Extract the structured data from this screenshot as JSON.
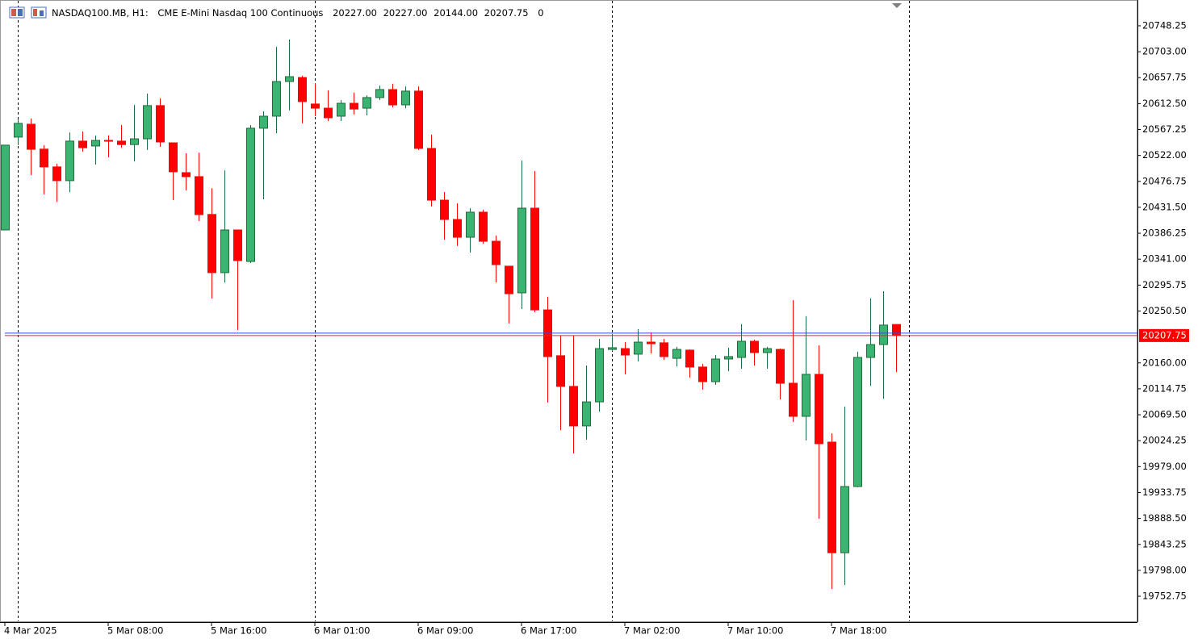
{
  "chart_data": {
    "type": "candlestick",
    "symbol": "NASDAQ100.MB, H1:",
    "description": "CME E-Mini Nasdaq 100 Continuous",
    "ohlc_header": [
      "20227.00",
      "20227.00",
      "20144.00",
      "20207.75",
      "0"
    ],
    "categories": [
      "4 Mar 2025",
      null,
      null,
      null,
      null,
      null,
      null,
      null,
      "5 Mar 08:00",
      null,
      null,
      null,
      null,
      null,
      null,
      null,
      "5 Mar 16:00",
      null,
      null,
      null,
      null,
      null,
      null,
      null,
      "6 Mar 01:00",
      null,
      null,
      null,
      null,
      null,
      null,
      null,
      "6 Mar 09:00",
      null,
      null,
      null,
      null,
      null,
      null,
      null,
      "6 Mar 17:00",
      null,
      null,
      null,
      null,
      null,
      null,
      null,
      "7 Mar 02:00",
      null,
      null,
      null,
      null,
      null,
      null,
      null,
      "7 Mar 10:00",
      null,
      null,
      null,
      null,
      null,
      null,
      null,
      "7 Mar 18:00",
      null,
      null,
      null,
      null,
      null
    ],
    "open": [
      20392,
      20554,
      20576.5,
      20533,
      20502,
      20478,
      20547,
      20538.5,
      20548.25,
      20547,
      20541,
      20551,
      20609,
      20544,
      20492,
      20485,
      20419,
      20317.5,
      20392,
      20337,
      20569.5,
      20590.5,
      20651,
      20658,
      20611.75,
      20604.5,
      20590.5,
      20613,
      20604.5,
      20623,
      20637,
      20610.25,
      20634.25,
      20534.25,
      20444,
      20410.25,
      20379.25,
      20423,
      20372.25,
      20328.75,
      20282.25,
      20430,
      20252.5,
      20172.5,
      20119,
      20050,
      20092,
      20183.5,
      20185,
      20175.25,
      20196.25,
      20195,
      20168,
      20182.25,
      20152.75,
      20127.25,
      20166.75,
      20169.5,
      20197.75,
      20178,
      20183.5,
      20124.5,
      20066.75,
      20140,
      20021.75,
      19828.75,
      19944.25,
      20169.5,
      20192,
      20227
    ],
    "high": [
      20540,
      20585,
      20586.25,
      20540,
      20507.5,
      20562,
      20563.75,
      20556.75,
      20557,
      20575,
      20610,
      20630,
      20621.5,
      20544,
      20525.75,
      20527,
      20465,
      20496,
      20392,
      20575,
      20599,
      20711.5,
      20724.25,
      20661,
      20648.25,
      20635.5,
      20618.75,
      20631.5,
      20627,
      20644,
      20647,
      20642.5,
      20642.5,
      20558.25,
      20458.25,
      20438.5,
      20430,
      20427.25,
      20382.25,
      20328.75,
      20513,
      20494.75,
      20275.25,
      20207.5,
      20207.5,
      20155.5,
      20202,
      20210.5,
      20196.25,
      20218.75,
      20213.25,
      20202,
      20188,
      20183.5,
      20158.25,
      20173.75,
      20186.5,
      20227.25,
      20200.5,
      20188,
      20185,
      20269.5,
      20241.5,
      20190.75,
      20037.25,
      20083.75,
      20179.5,
      20272.25,
      20285,
      20227
    ],
    "low": [
      20392,
      20540,
      20487.75,
      20454,
      20441,
      20458,
      20528.5,
      20506,
      20518.75,
      20535.5,
      20511.75,
      20531.5,
      20537,
      20444,
      20461,
      20407.5,
      20272.25,
      20300.5,
      20217.5,
      20334.25,
      20445.5,
      20561,
      20600.5,
      20578,
      20590.5,
      20582,
      20582,
      20593.5,
      20592,
      20618.75,
      20606,
      20604.5,
      20531.5,
      20433,
      20375,
      20364,
      20352.5,
      20368,
      20300.5,
      20228.75,
      20254,
      20248.5,
      20090.75,
      20042.75,
      20002,
      20026,
      20075.25,
      20180.75,
      20140,
      20162.5,
      20176.5,
      20165.25,
      20154,
      20134.25,
      20113.25,
      20121.75,
      20145.5,
      20149.75,
      20155.5,
      20149.75,
      20096.25,
      20057,
      20024.5,
      19888,
      19765.5,
      19772.5,
      19943,
      20120.25,
      20097.75,
      20144
    ],
    "close": [
      20540,
      20578,
      20532.75,
      20502,
      20478,
      20547,
      20535.5,
      20548.25,
      20547,
      20541,
      20551,
      20609,
      20545.5,
      20493.5,
      20485,
      20418.75,
      20317.5,
      20392,
      20338.5,
      20569.5,
      20590.5,
      20651,
      20659.5,
      20616,
      20604.5,
      20587.75,
      20613,
      20603,
      20623,
      20637,
      20610.25,
      20634.25,
      20534.25,
      20444,
      20410.25,
      20379.25,
      20423,
      20372.25,
      20331.5,
      20280.75,
      20430,
      20252.5,
      20171,
      20119,
      20050,
      20092,
      20185,
      20186.5,
      20173.75,
      20196.25,
      20193.5,
      20171,
      20183.5,
      20152.75,
      20127.25,
      20166.75,
      20171,
      20197.75,
      20178,
      20185,
      20124.5,
      20066.75,
      20140,
      20019,
      19828.75,
      19944.25,
      20169.5,
      20192,
      20226,
      20207.75
    ],
    "up_color": "#3cb371",
    "down_color": "#ff0000",
    "current_price": 20207.75,
    "ylim": [
      19707.75,
      20793.25
    ],
    "yticks": [
      20748.25,
      {
        "value": 20703,
        "label": "20703.00"
      },
      20657.75,
      {
        "value": 20612.5,
        "label": "20612.50"
      },
      20567.25,
      {
        "value": 20522,
        "label": "20522.00"
      },
      20476.75,
      {
        "value": 20431.5,
        "label": "20431.50"
      },
      20386.25,
      {
        "value": 20341,
        "label": "20341.00"
      },
      20295.75,
      {
        "value": 20250.5,
        "label": "20250.50"
      },
      {
        "value": 20160,
        "label": "20160.00"
      },
      20114.75,
      {
        "value": 20069.5,
        "label": "20069.50"
      },
      20024.25,
      {
        "value": 19979,
        "label": "19979.00"
      },
      19933.75,
      {
        "value": 19888.5,
        "label": "19888.50"
      },
      19843.25,
      {
        "value": 19798,
        "label": "19798.00"
      },
      19752.75
    ]
  }
}
